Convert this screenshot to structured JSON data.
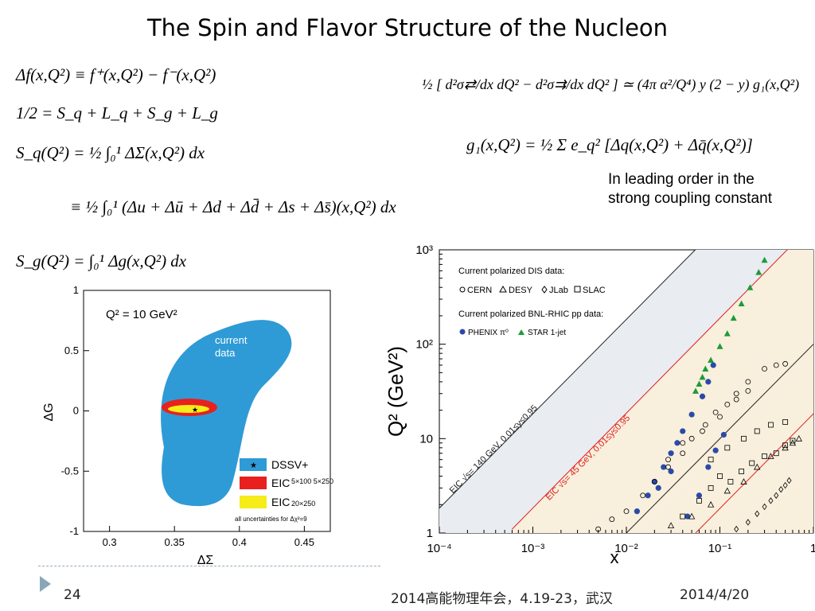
{
  "slide": {
    "title": "The Spin and Flavor Structure of the Nucleon",
    "page_number": "24",
    "footer_center": "2014高能物理年会，4.19-23，武汉",
    "footer_date": "2014/4/20"
  },
  "equations": {
    "left": [
      "Δf(x,Q²) ≡ f⁺(x,Q²) − f⁻(x,Q²)",
      "1/2 = S_q + L_q + S_g + L_g",
      "S_q(Q²) = ½ ∫₀¹ ΔΣ(x,Q²) dx",
      "≡ ½ ∫₀¹ (Δu + Δū + Δd + Δd̄ + Δs + Δs̄)(x,Q²) dx",
      "S_g(Q²) = ∫₀¹ Δg(x,Q²) dx"
    ],
    "right": [
      "½ [ d²σ⇄/dx dQ² − d²σ⇉/dx dQ² ] ≃ (4π α²/Q⁴) y (2 − y) g₁(x,Q²)",
      "g₁(x,Q²) = ½ Σ e_q² [Δq(x,Q²) + Δq̄(x,Q²)]"
    ]
  },
  "note": {
    "line1": "In leading order in the",
    "line2": "strong coupling constant"
  },
  "chart_data": [
    {
      "type": "scatter",
      "subtype": "contour",
      "title": "Q² = 10 GeV²",
      "xlabel": "ΔΣ",
      "ylabel": "ΔG",
      "xlim": [
        0.28,
        0.47
      ],
      "ylim": [
        -1,
        1
      ],
      "x_ticks": [
        "0.3",
        "0.35",
        "0.4",
        "0.45"
      ],
      "y_ticks": [
        "1",
        "0.5",
        "0",
        "-0.5",
        "-1"
      ],
      "annotations": [
        "current",
        "data"
      ],
      "central_value": {
        "x": 0.373,
        "y": 0.01
      },
      "regions": [
        {
          "name": "current data",
          "color": "#2e9bd6",
          "x_range": [
            0.325,
            0.455
          ],
          "y_range": [
            -0.85,
            0.75
          ]
        },
        {
          "name": "EIC 5×100 / 5×250",
          "color": "#e8201e",
          "x_range": [
            0.35,
            0.395
          ],
          "y_range": [
            -0.02,
            0.05
          ]
        },
        {
          "name": "EIC 20×250",
          "color": "#f5ec1a",
          "x_range": [
            0.357,
            0.385
          ],
          "y_range": [
            0.0,
            0.025
          ]
        }
      ],
      "legend": {
        "items": [
          {
            "label": "DSSV+",
            "sublabel": "",
            "color": "#2e9bd6",
            "marker": "★"
          },
          {
            "label": "EIC",
            "sublabel": "5×100 5×250",
            "color": "#e8201e"
          },
          {
            "label": "EIC",
            "sublabel": "20×250",
            "color": "#f5ec1a"
          }
        ],
        "note": "all uncertainties for Δχ²=9",
        "placement": "bottom-right"
      }
    },
    {
      "type": "scatter",
      "xlabel": "x",
      "ylabel": "Q² (GeV²)",
      "xscale": "log",
      "yscale": "log",
      "xlim": [
        0.0001,
        1
      ],
      "ylim": [
        1,
        1000
      ],
      "x_ticks": [
        "10⁻⁴",
        "10⁻³",
        "10⁻²",
        "10⁻¹",
        "1"
      ],
      "y_ticks": [
        "1",
        "10",
        "10²",
        "10³"
      ],
      "legend": {
        "heading1": "Current polarized DIS data:",
        "dis_items": [
          "CERN",
          "DESY",
          "JLab",
          "SLAC"
        ],
        "heading2": "Current polarized BNL-RHIC pp data:",
        "pp_items": [
          "PHENIX π⁰",
          "STAR 1-jet"
        ],
        "placement": "top-left"
      },
      "line_labels": {
        "eic140": "EIC √s= 140 GeV, 0.01≤y≤0.95",
        "eic45": "EIC √s= 45 GeV, 0.01≤y≤0.95"
      },
      "colors": {
        "eic140": "#222222",
        "eic45": "#e02020",
        "phenix": "#2b4aa8",
        "star": "#1e9a3a",
        "band140": "#e9ecf1",
        "band45": "#f8efdc"
      },
      "series": [
        {
          "name": "STAR 1-jet",
          "points": [
            [
              0.055,
              32
            ],
            [
              0.06,
              38
            ],
            [
              0.065,
              45
            ],
            [
              0.07,
              55
            ],
            [
              0.08,
              68
            ],
            [
              0.1,
              95
            ],
            [
              0.12,
              130
            ],
            [
              0.14,
              190
            ],
            [
              0.17,
              270
            ],
            [
              0.21,
              400
            ],
            [
              0.26,
              580
            ],
            [
              0.3,
              780
            ]
          ]
        },
        {
          "name": "PHENIX π⁰",
          "points": [
            [
              0.013,
              1.7
            ],
            [
              0.017,
              2.5
            ],
            [
              0.02,
              3.5
            ],
            [
              0.025,
              5
            ],
            [
              0.03,
              7
            ],
            [
              0.035,
              9
            ],
            [
              0.04,
              12
            ],
            [
              0.05,
              18
            ],
            [
              0.065,
              28
            ],
            [
              0.075,
              40
            ],
            [
              0.085,
              60
            ],
            [
              0.022,
              3
            ],
            [
              0.03,
              4.5
            ],
            [
              0.045,
              1.5
            ],
            [
              0.06,
              2.5
            ],
            [
              0.075,
              5
            ],
            [
              0.09,
              7.5
            ],
            [
              0.11,
              11
            ]
          ]
        },
        {
          "name": "CERN",
          "points": [
            [
              0.005,
              1.1
            ],
            [
              0.007,
              1.4
            ],
            [
              0.01,
              1.7
            ],
            [
              0.015,
              2.5
            ],
            [
              0.02,
              3.5
            ],
            [
              0.028,
              5
            ],
            [
              0.04,
              7
            ],
            [
              0.05,
              10
            ],
            [
              0.07,
              14
            ],
            [
              0.09,
              19
            ],
            [
              0.12,
              23
            ],
            [
              0.15,
              30
            ],
            [
              0.2,
              40
            ],
            [
              0.3,
              55
            ],
            [
              0.4,
              60
            ],
            [
              0.5,
              62
            ],
            [
              0.028,
              6
            ],
            [
              0.04,
              9
            ],
            [
              0.065,
              12
            ],
            [
              0.1,
              17
            ],
            [
              0.15,
              26
            ],
            [
              0.2,
              32
            ]
          ]
        },
        {
          "name": "DESY",
          "points": [
            [
              0.03,
              1.2
            ],
            [
              0.05,
              1.5
            ],
            [
              0.08,
              2
            ],
            [
              0.12,
              2.8
            ],
            [
              0.18,
              3.5
            ],
            [
              0.25,
              5
            ],
            [
              0.35,
              6.5
            ],
            [
              0.5,
              8
            ],
            [
              0.6,
              9
            ],
            [
              0.7,
              10
            ]
          ]
        },
        {
          "name": "JLab",
          "points": [
            [
              0.15,
              1.1
            ],
            [
              0.2,
              1.3
            ],
            [
              0.25,
              1.6
            ],
            [
              0.3,
              1.9
            ],
            [
              0.35,
              2.2
            ],
            [
              0.4,
              2.5
            ],
            [
              0.45,
              2.9
            ],
            [
              0.5,
              3.2
            ],
            [
              0.55,
              3.6
            ]
          ]
        },
        {
          "name": "SLAC",
          "points": [
            [
              0.04,
              1.5
            ],
            [
              0.06,
              2.2
            ],
            [
              0.08,
              3
            ],
            [
              0.1,
              4
            ],
            [
              0.13,
              3.5
            ],
            [
              0.17,
              4.5
            ],
            [
              0.22,
              5.5
            ],
            [
              0.3,
              6.5
            ],
            [
              0.4,
              7
            ],
            [
              0.5,
              8.5
            ],
            [
              0.6,
              9.5
            ],
            [
              0.08,
              6
            ],
            [
              0.12,
              8
            ],
            [
              0.18,
              10
            ],
            [
              0.25,
              12
            ],
            [
              0.35,
              14
            ],
            [
              0.5,
              15
            ]
          ]
        }
      ]
    }
  ]
}
